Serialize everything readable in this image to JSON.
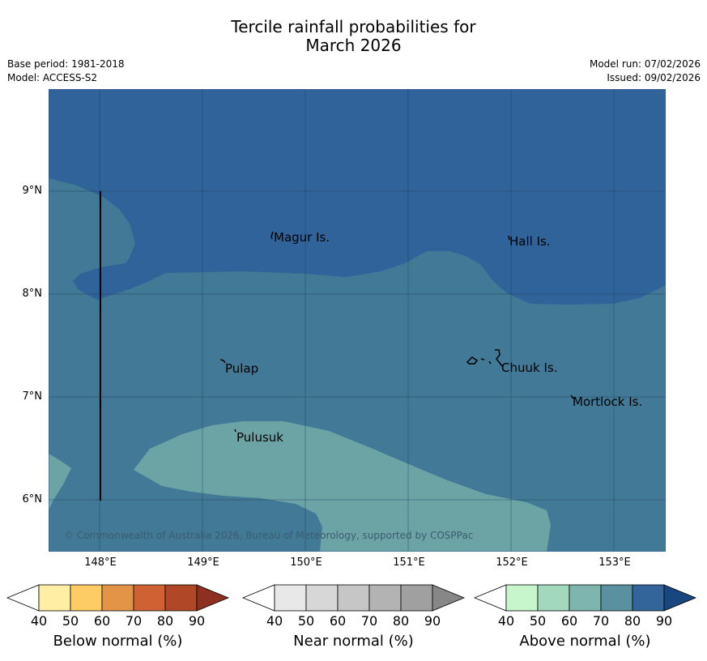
{
  "title": {
    "line1": "Tercile rainfall probabilities for",
    "line2": "March 2026"
  },
  "meta": {
    "base_period": "Base period: 1981-2018",
    "model": "Model: ACCESS-S2",
    "model_run": "Model run: 07/02/2026",
    "issued": "Issued: 09/02/2026"
  },
  "map": {
    "lat_ticks": [
      "9°N",
      "8°N",
      "7°N",
      "6°N"
    ],
    "lon_ticks": [
      "148°E",
      "149°E",
      "150°E",
      "151°E",
      "152°E",
      "153°E"
    ],
    "places": [
      "Magur Is.",
      "Hall Is.",
      "Pulap",
      "Chuuk Is.",
      "Mortlock Is.",
      "Pulusuk"
    ],
    "copyright": "© Commonwealth of Australia 2026, Bureau of Meteorology, supported by COSPPac",
    "fill_colors": {
      "above_80": "#30639a",
      "above_70": "#427996",
      "above_60": "#6ca4a6"
    }
  },
  "colorbars": [
    {
      "label": "Below normal (%)",
      "ticks": [
        "40",
        "50",
        "60",
        "70",
        "80",
        "90"
      ],
      "colors": [
        "#ffffff",
        "#ffeea3",
        "#fdcc64",
        "#e39446",
        "#cf6133",
        "#b04726",
        "#8e3020"
      ]
    },
    {
      "label": "Near normal (%)",
      "ticks": [
        "40",
        "50",
        "60",
        "70",
        "80",
        "90"
      ],
      "colors": [
        "#ffffff",
        "#e8e8e8",
        "#d7d7d7",
        "#c6c6c6",
        "#b3b3b3",
        "#a0a0a0",
        "#878787"
      ]
    },
    {
      "label": "Above normal (%)",
      "ticks": [
        "40",
        "50",
        "60",
        "70",
        "80",
        "90"
      ],
      "colors": [
        "#ffffff",
        "#c8f6cc",
        "#a2d9bd",
        "#7eb6ad",
        "#5a91a0",
        "#33649a",
        "#17477e"
      ]
    }
  ]
}
